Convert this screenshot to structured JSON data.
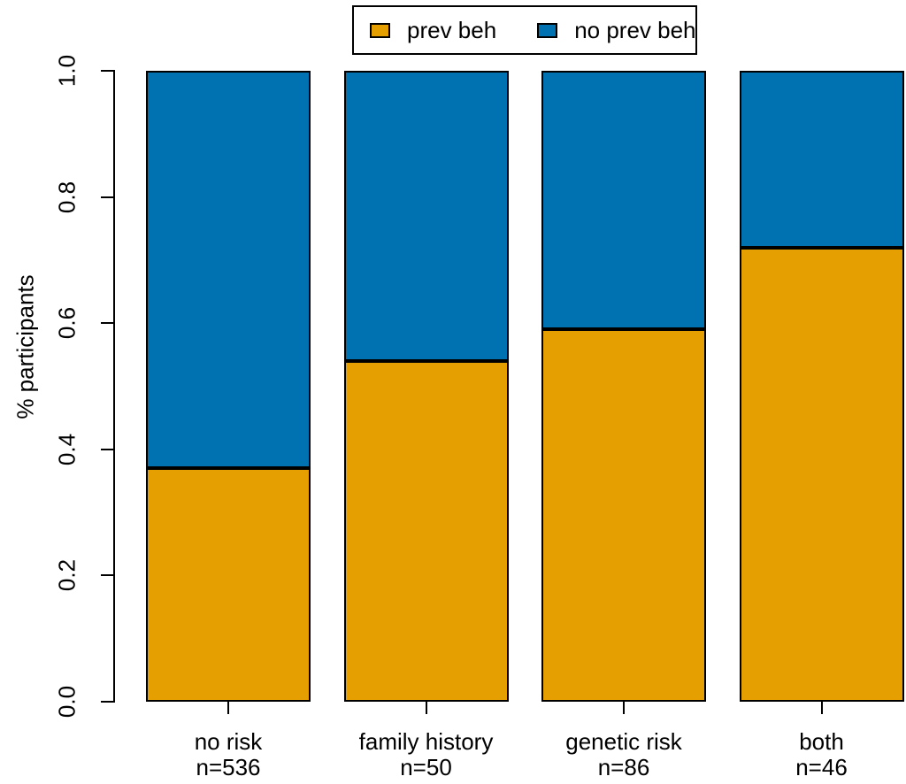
{
  "chart_data": {
    "type": "stacked-bar",
    "title": "",
    "xlabel": "",
    "ylabel": "% participants",
    "ylim": [
      0,
      1
    ],
    "grid": false,
    "legend_position": "top-center",
    "y_tick_labels": [
      "0.0",
      "0.2",
      "0.4",
      "0.6",
      "0.8",
      "1.0"
    ],
    "categories": [
      {
        "label": "no risk",
        "n": "n=536"
      },
      {
        "label": "family history",
        "n": "n=50"
      },
      {
        "label": "genetic risk",
        "n": "n=86"
      },
      {
        "label": "both",
        "n": "n=46"
      }
    ],
    "series": [
      {
        "name": "prev beh",
        "color": "#E69F00",
        "values": [
          0.37,
          0.54,
          0.59,
          0.72
        ]
      },
      {
        "name": "no prev beh",
        "color": "#0072B2",
        "values": [
          0.63,
          0.46,
          0.41,
          0.28
        ]
      }
    ],
    "bar_border_color": "#000000"
  }
}
